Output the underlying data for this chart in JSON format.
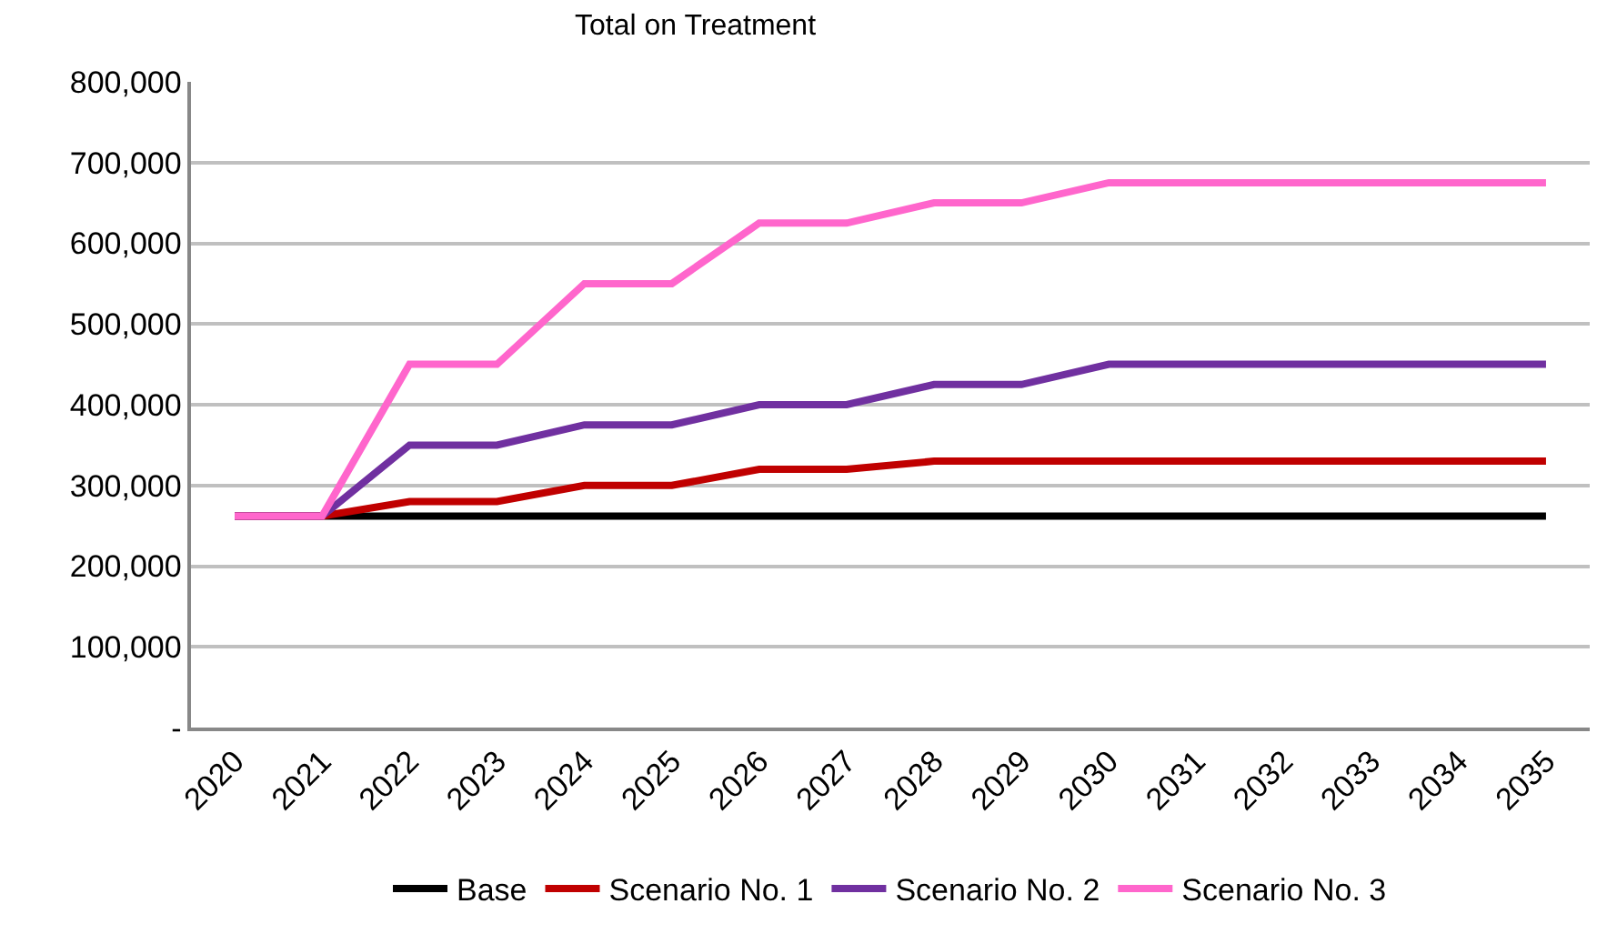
{
  "chart_data": {
    "type": "line",
    "title": "Total on Treatment",
    "categories": [
      "2020",
      "2021",
      "2022",
      "2023",
      "2024",
      "2025",
      "2026",
      "2027",
      "2028",
      "2029",
      "2030",
      "2031",
      "2032",
      "2033",
      "2034",
      "2035"
    ],
    "series": [
      {
        "name": "Base",
        "color": "#000000",
        "values": [
          262000,
          262000,
          262000,
          262000,
          262000,
          262000,
          262000,
          262000,
          262000,
          262000,
          262000,
          262000,
          262000,
          262000,
          262000,
          262000
        ]
      },
      {
        "name": "Scenario No. 1",
        "color": "#c00000",
        "values": [
          262000,
          262000,
          280000,
          280000,
          300000,
          300000,
          320000,
          320000,
          330000,
          330000,
          330000,
          330000,
          330000,
          330000,
          330000,
          330000
        ]
      },
      {
        "name": "Scenario No. 2",
        "color": "#7030a0",
        "values": [
          262000,
          262000,
          350000,
          350000,
          375000,
          375000,
          400000,
          400000,
          425000,
          425000,
          450000,
          450000,
          450000,
          450000,
          450000,
          450000
        ]
      },
      {
        "name": "Scenario No. 3",
        "color": "#ff66cc",
        "values": [
          262000,
          262000,
          450000,
          450000,
          550000,
          550000,
          625000,
          625000,
          650000,
          650000,
          675000,
          675000,
          675000,
          675000,
          675000,
          675000
        ]
      }
    ],
    "ylim": [
      0,
      800000
    ],
    "yticks": [
      {
        "value": 0,
        "label": "-"
      },
      {
        "value": 100000,
        "label": "100,000"
      },
      {
        "value": 200000,
        "label": "200,000"
      },
      {
        "value": 300000,
        "label": "300,000"
      },
      {
        "value": 400000,
        "label": "400,000"
      },
      {
        "value": 500000,
        "label": "500,000"
      },
      {
        "value": 600000,
        "label": "600,000"
      },
      {
        "value": 700000,
        "label": "700,000"
      },
      {
        "value": 800000,
        "label": "800,000"
      }
    ],
    "grid": "y",
    "legend": "bottom",
    "marker": "none",
    "line_style": "solid"
  }
}
